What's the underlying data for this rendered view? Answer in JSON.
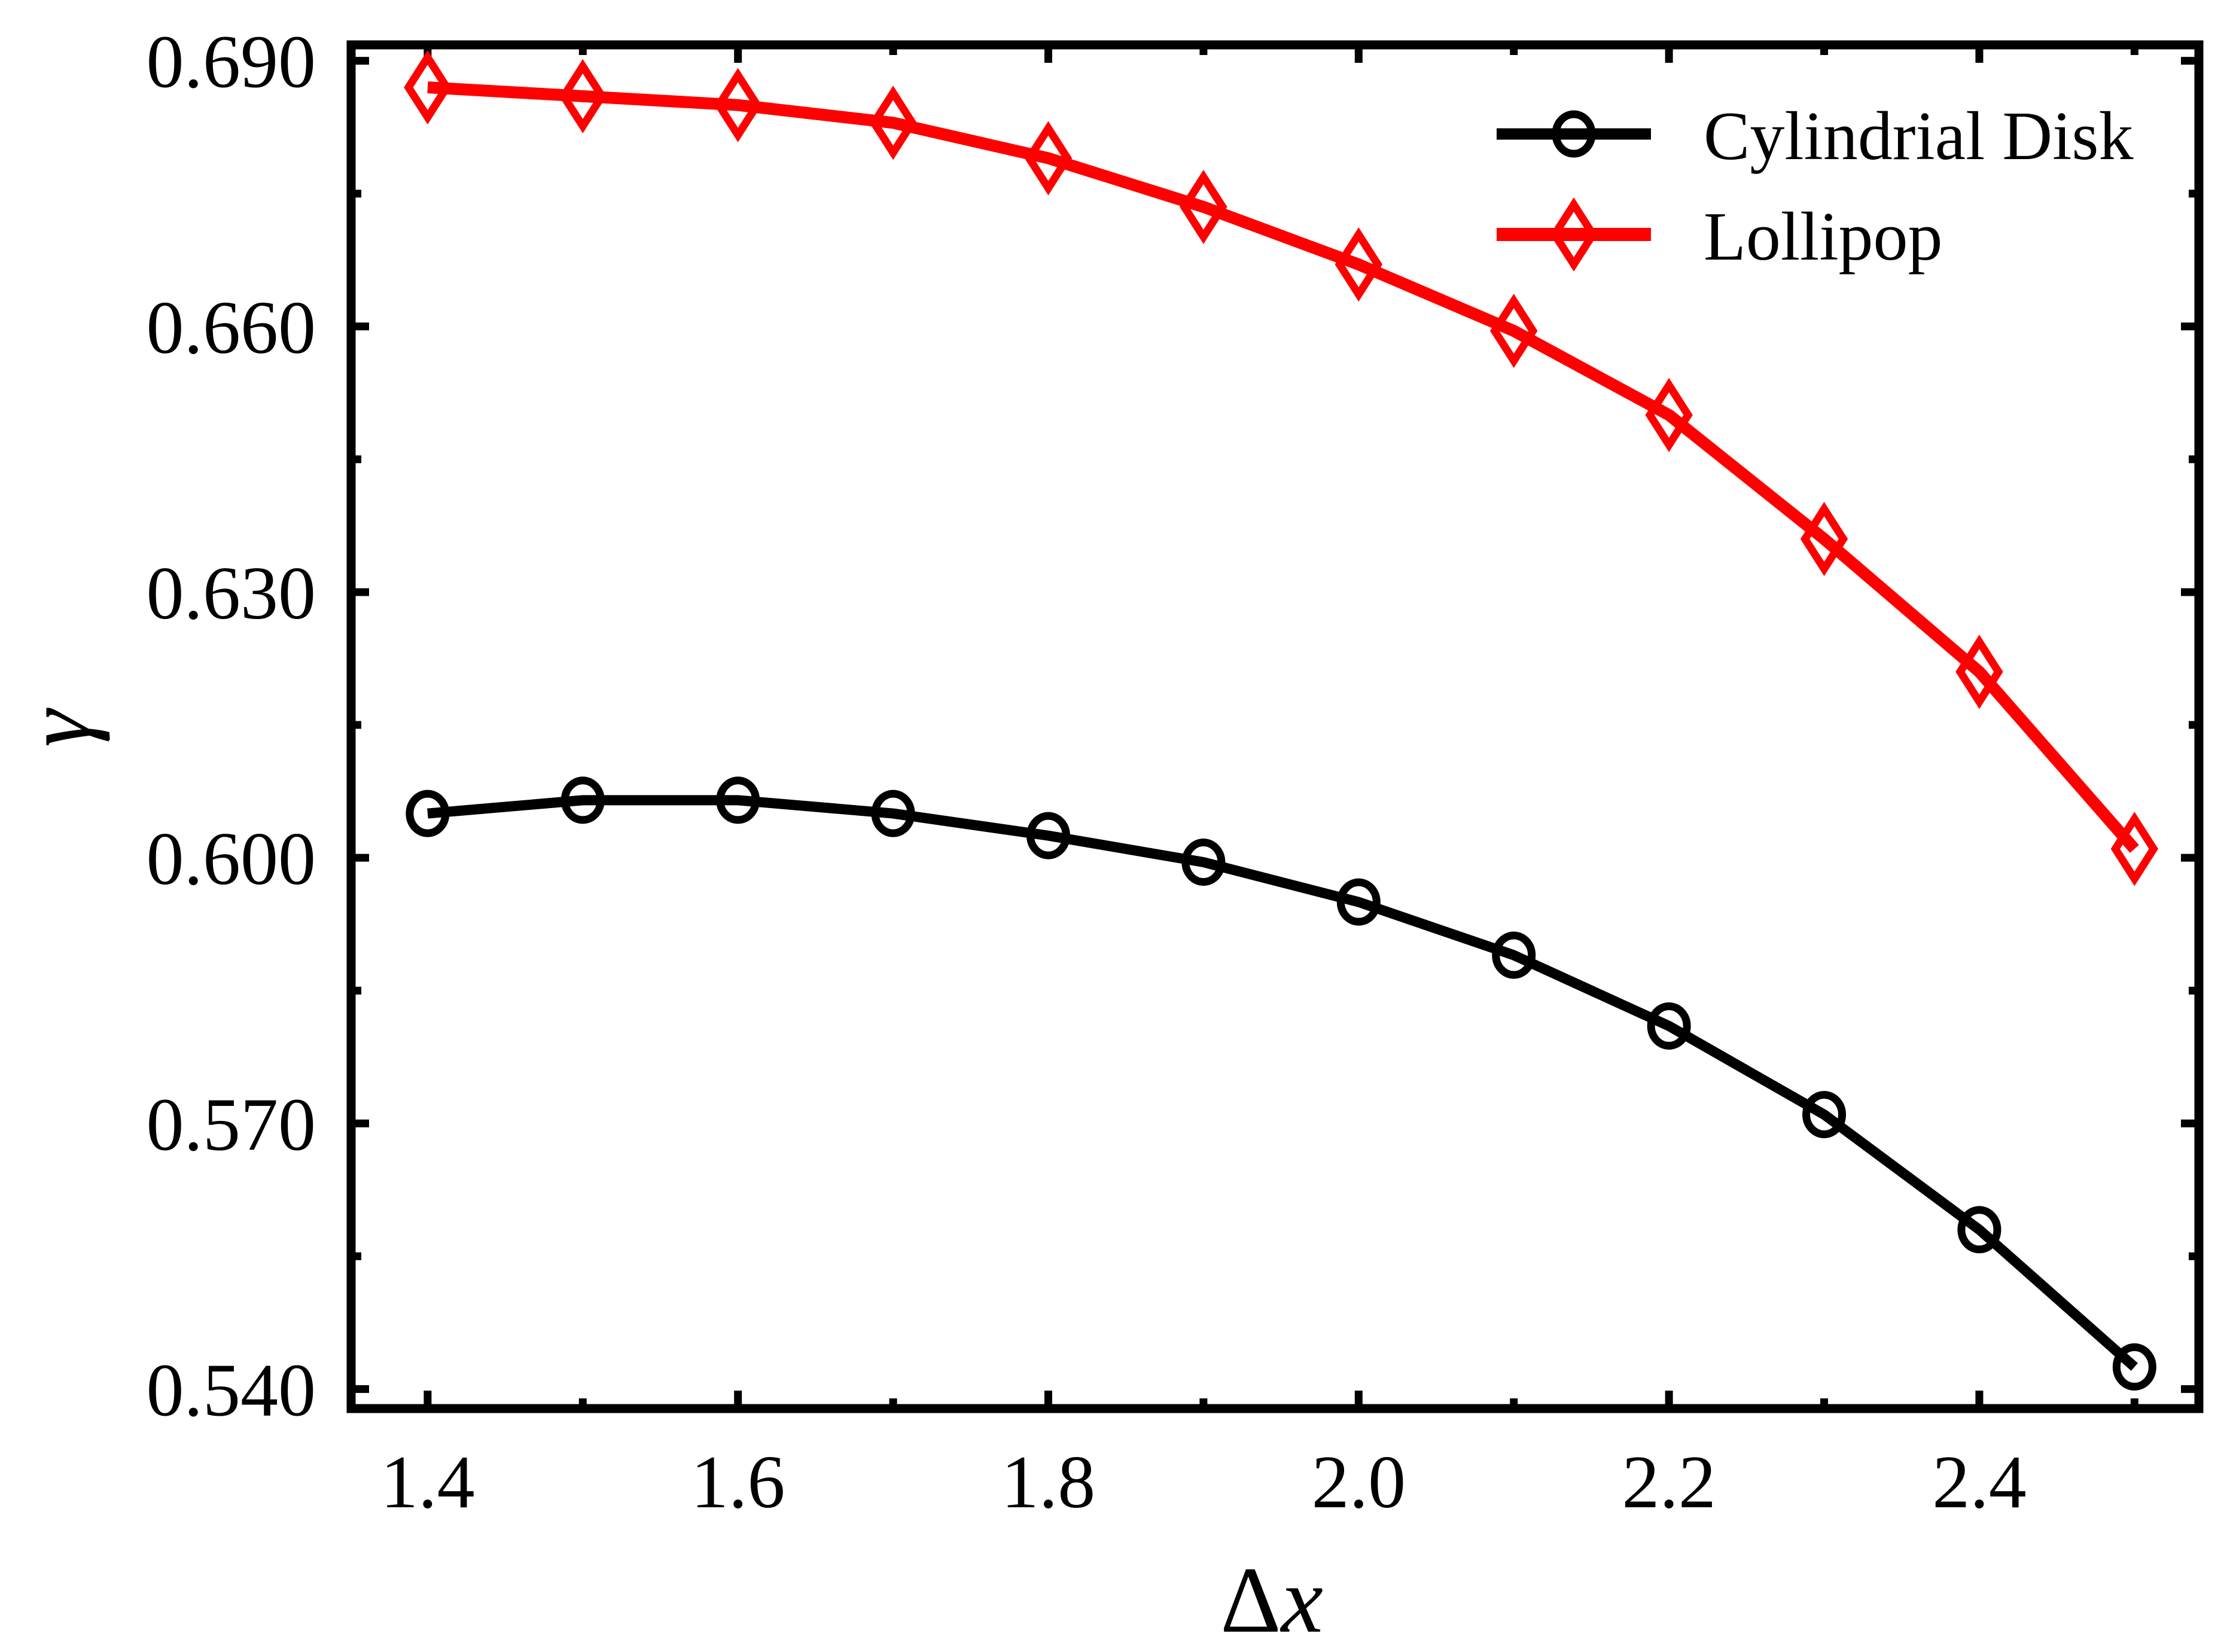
{
  "chart_data": {
    "type": "line",
    "title": "",
    "xlabel": "Δx",
    "ylabel": "γ",
    "x": [
      1.4,
      1.5,
      1.6,
      1.7,
      1.8,
      1.9,
      2.0,
      2.1,
      2.2,
      2.3,
      2.4,
      2.5
    ],
    "series": [
      {
        "name": "Cylindrial Disk",
        "color": "#000000",
        "marker": "circle",
        "values": [
          0.605,
          0.6065,
          0.6065,
          0.605,
          0.6025,
          0.5995,
          0.595,
          0.589,
          0.581,
          0.571,
          0.558,
          0.5425
        ]
      },
      {
        "name": "Lollipop",
        "color": "#ff0000",
        "marker": "thin-diamond",
        "values": [
          0.687,
          0.686,
          0.685,
          0.683,
          0.679,
          0.6735,
          0.667,
          0.6595,
          0.65,
          0.636,
          0.621,
          0.601
        ]
      }
    ],
    "x_ticks": {
      "major": [
        1.4,
        1.6,
        1.8,
        2.0,
        2.2,
        2.4
      ],
      "minor": [
        1.5,
        1.7,
        1.9,
        2.1,
        2.3,
        2.5
      ],
      "labels": [
        "1.4",
        "1.6",
        "1.8",
        "2.0",
        "2.2",
        "2.4"
      ]
    },
    "y_ticks": {
      "major": [
        0.54,
        0.57,
        0.6,
        0.63,
        0.66,
        0.69
      ],
      "minor": [
        0.555,
        0.585,
        0.615,
        0.645,
        0.675
      ],
      "labels": [
        "0.540",
        "0.570",
        "0.600",
        "0.630",
        "0.660",
        "0.690"
      ]
    },
    "xlim": [
      1.3507,
      2.5415
    ],
    "ylim": [
      0.5378,
      0.6918
    ],
    "grid": false,
    "legend_position": "upper-right",
    "tick_direction": "in",
    "background_color": "#ffffff",
    "axis_color": "#000000"
  }
}
